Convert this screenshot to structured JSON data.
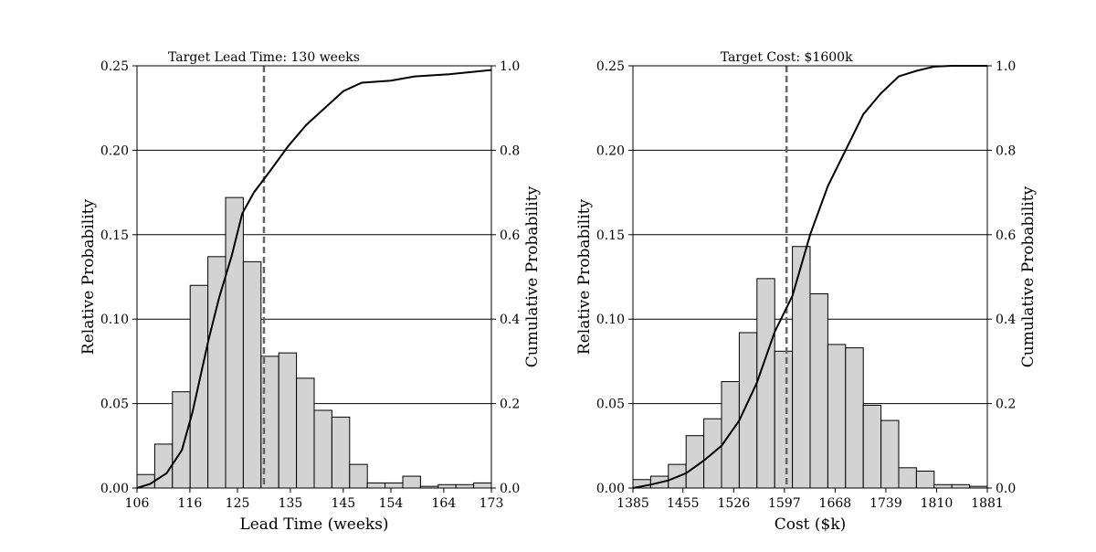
{
  "chart_data": [
    {
      "type": "bar",
      "subtype": "histogram-with-cdf",
      "title": "",
      "xlabel": "Lead Time (weeks)",
      "ylabel": "Relative Probability",
      "ylabel_right": "Cumulative Probability",
      "target_label": "Target Lead Time: 130 weeks",
      "target_value": 130,
      "xlim": [
        106,
        173
      ],
      "ylim": [
        0,
        0.25
      ],
      "ylim_right": [
        0,
        1.0
      ],
      "x_ticks": [
        106,
        116,
        125,
        135,
        145,
        154,
        164,
        173
      ],
      "y_ticks": [
        "0.00",
        "0.05",
        "0.10",
        "0.15",
        "0.20",
        "0.25"
      ],
      "y_ticks_right": [
        "0.0",
        "0.2",
        "0.4",
        "0.6",
        "0.8",
        "1.0"
      ],
      "grid": "horizontal",
      "bin_edges": [
        106,
        109.35,
        112.7,
        116.05,
        119.4,
        122.75,
        126.1,
        129.45,
        132.8,
        136.15,
        139.5,
        142.85,
        146.2,
        149.55,
        152.9,
        156.25,
        159.6,
        162.95,
        166.3,
        169.65,
        173
      ],
      "values": [
        0.008,
        0.026,
        0.057,
        0.12,
        0.137,
        0.172,
        0.134,
        0.078,
        0.08,
        0.065,
        0.046,
        0.042,
        0.014,
        0.003,
        0.003,
        0.007,
        0.001,
        0.002,
        0.002,
        0.003
      ],
      "cdf": {
        "x": [
          106,
          108.5,
          111.6,
          114.5,
          116.5,
          119.5,
          121.5,
          123.9,
          125.9,
          128.1,
          131.1,
          134.6,
          138.0,
          141.5,
          145.0,
          148.5,
          154.0,
          158.5,
          165.0,
          173.0
        ],
        "y": [
          0.0,
          0.01,
          0.035,
          0.09,
          0.18,
          0.35,
          0.45,
          0.55,
          0.65,
          0.7,
          0.75,
          0.81,
          0.86,
          0.9,
          0.94,
          0.96,
          0.965,
          0.975,
          0.98,
          0.99
        ]
      }
    },
    {
      "type": "bar",
      "subtype": "histogram-with-cdf",
      "title": "",
      "xlabel": "Cost ($k)",
      "ylabel": "Relative Probability",
      "ylabel_right": "Cumulative Probability",
      "target_label": "Target Cost: $1600k",
      "target_value": 1600,
      "xlim": [
        1385,
        1881
      ],
      "ylim": [
        0,
        0.25
      ],
      "ylim_right": [
        0,
        1.0
      ],
      "x_ticks": [
        1385,
        1455,
        1526,
        1597,
        1668,
        1739,
        1810,
        1881
      ],
      "y_ticks": [
        "0.00",
        "0.05",
        "0.10",
        "0.15",
        "0.20",
        "0.25"
      ],
      "y_ticks_right": [
        "0.0",
        "0.2",
        "0.4",
        "0.6",
        "0.8",
        "1.0"
      ],
      "grid": "horizontal",
      "bin_edges": [
        1385,
        1409.8,
        1434.6,
        1459.4,
        1484.2,
        1509,
        1533.8,
        1558.6,
        1583.4,
        1608.2,
        1633,
        1657.8,
        1682.6,
        1707.4,
        1732.2,
        1757,
        1781.8,
        1806.6,
        1831.4,
        1856.2,
        1881
      ],
      "values": [
        0.005,
        0.007,
        0.014,
        0.031,
        0.041,
        0.063,
        0.092,
        0.124,
        0.081,
        0.143,
        0.115,
        0.085,
        0.083,
        0.049,
        0.04,
        0.012,
        0.01,
        0.002,
        0.002,
        0.001
      ],
      "cdf": {
        "x": [
          1385,
          1409.8,
          1434.6,
          1459.4,
          1484.2,
          1509,
          1533.8,
          1558.6,
          1583.4,
          1608.2,
          1633,
          1657.8,
          1682.6,
          1707.4,
          1732.2,
          1757,
          1781.8,
          1806.6,
          1831.4,
          1856.2,
          1881
        ],
        "y": [
          0.0,
          0.008,
          0.018,
          0.035,
          0.065,
          0.1,
          0.16,
          0.25,
          0.37,
          0.455,
          0.6,
          0.715,
          0.8,
          0.885,
          0.935,
          0.975,
          0.988,
          0.998,
          1.0,
          1.0,
          1.0
        ]
      }
    }
  ]
}
